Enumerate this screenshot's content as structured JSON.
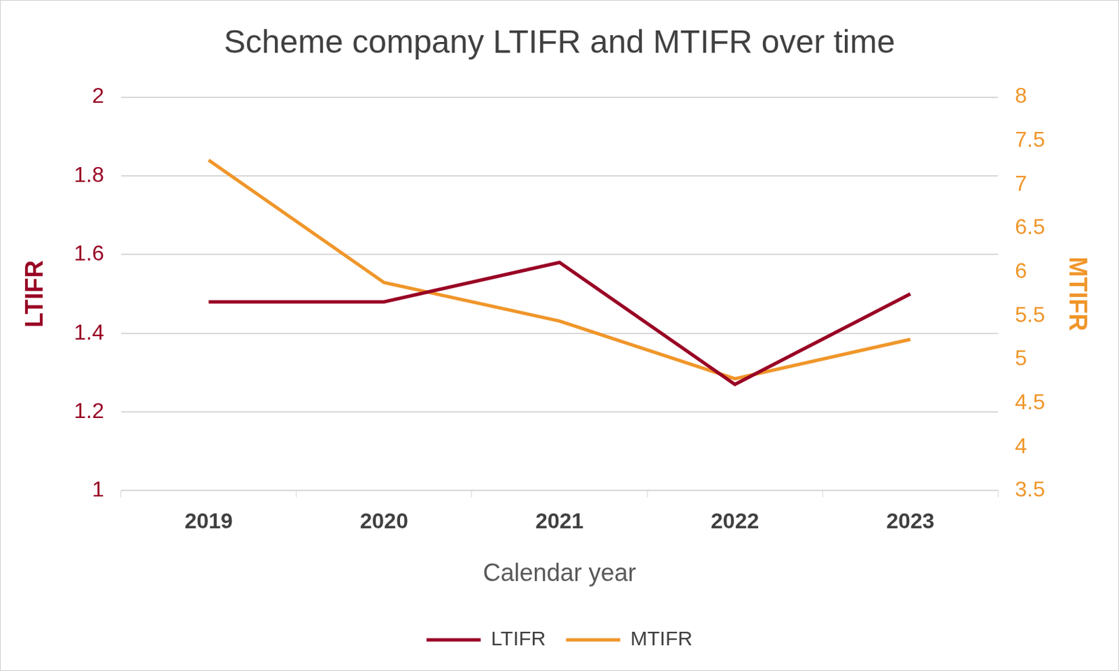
{
  "chart_data": {
    "type": "line",
    "title": "Scheme company LTIFR and MTIFR over time",
    "x_label": "Calendar year",
    "y_label": "LTIFR",
    "y2_label": "MTIFR",
    "categories": [
      "2019",
      "2020",
      "2021",
      "2022",
      "2023"
    ],
    "series": [
      {
        "name": "LTIFR",
        "color": "#990024",
        "values": [
          1.48,
          1.48,
          1.58,
          1.27,
          1.5
        ]
      },
      {
        "name": "MTIFR",
        "color": "#f0962a",
        "axis": "y2",
        "values": [
          7.28,
          5.88,
          5.44,
          4.78,
          5.23
        ]
      }
    ],
    "ylim": [
      1,
      2
    ],
    "yticks": [
      1,
      1.2,
      1.4,
      1.6,
      1.8,
      2
    ],
    "y2lim": [
      3.5,
      8
    ],
    "y2ticks": [
      3.5,
      4,
      4.5,
      5,
      5.5,
      6,
      6.5,
      7,
      7.5,
      8
    ],
    "grid": true,
    "legend": "bottom"
  }
}
